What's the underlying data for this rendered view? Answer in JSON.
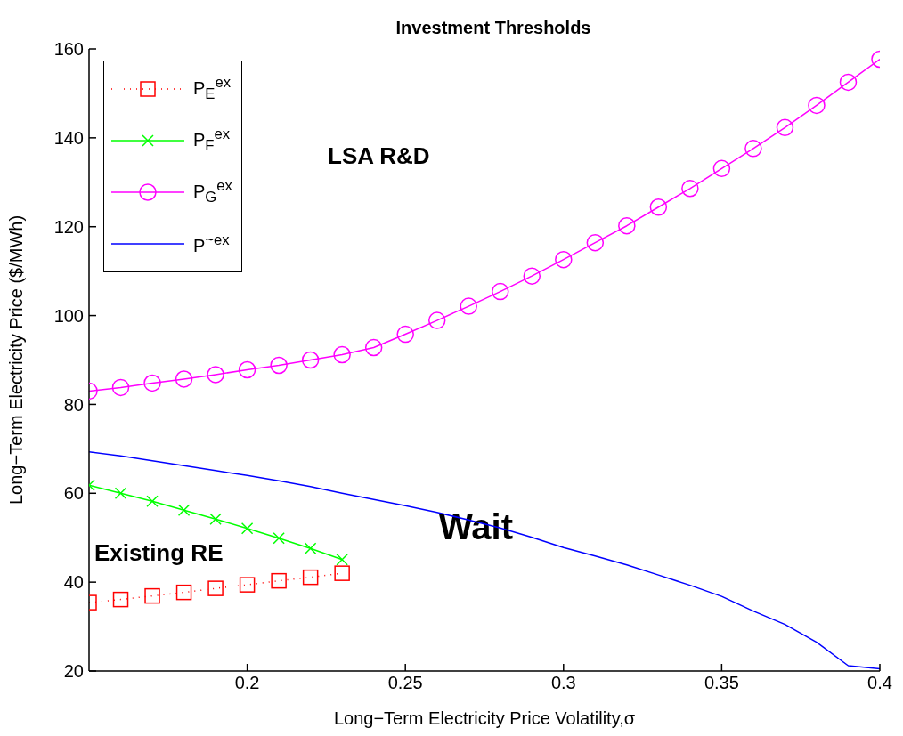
{
  "chart_data": {
    "type": "line",
    "title": "Investment Thresholds",
    "xlabel": "Long−Term Electricity Price Volatility,σ",
    "ylabel": "Long−Term Electricity Price ($/MWh)",
    "xlim": [
      0.15,
      0.4
    ],
    "xticks": [
      0.2,
      0.25,
      0.3,
      0.35,
      0.4
    ],
    "ylim": [
      20,
      160
    ],
    "yticks": [
      20,
      40,
      60,
      80,
      100,
      120,
      140,
      160
    ],
    "grid": false,
    "legend": "top left",
    "annotations": [
      "LSA R&D",
      "Wait",
      "Existing RE"
    ],
    "series": [
      {
        "name": "P$_{E}$$^{ex}$",
        "color": "#ff0000",
        "marker": "square",
        "line_style": "dotted",
        "x": [
          0.15,
          0.16,
          0.17,
          0.18,
          0.19,
          0.2,
          0.21,
          0.22,
          0.23
        ],
        "values": [
          35.4,
          36.1,
          36.9,
          37.7,
          38.6,
          39.4,
          40.3,
          41.1,
          42.0
        ]
      },
      {
        "name": "P$_{F}$$^{ex}$",
        "color": "#00ff00",
        "marker": "cross",
        "line_style": "solid",
        "x": [
          0.15,
          0.16,
          0.17,
          0.18,
          0.19,
          0.2,
          0.21,
          0.22,
          0.23
        ],
        "values": [
          61.8,
          60.0,
          58.2,
          56.2,
          54.2,
          52.1,
          49.9,
          47.6,
          45.1
        ]
      },
      {
        "name": "P$_{G}$$^{ex}$",
        "color": "#ff00ff",
        "marker": "circle",
        "line_style": "solid",
        "x": [
          0.15,
          0.16,
          0.17,
          0.18,
          0.19,
          0.2,
          0.21,
          0.22,
          0.23,
          0.24,
          0.25,
          0.26,
          0.27,
          0.28,
          0.29,
          0.3,
          0.31,
          0.32,
          0.33,
          0.34,
          0.35,
          0.36,
          0.37,
          0.38,
          0.39,
          0.4
        ],
        "values": [
          83.0,
          83.8,
          84.8,
          85.7,
          86.7,
          87.8,
          88.8,
          90.0,
          91.2,
          92.8,
          95.8,
          98.9,
          102.1,
          105.4,
          108.9,
          112.6,
          116.4,
          120.2,
          124.4,
          128.6,
          133.1,
          137.6,
          142.3,
          147.3,
          152.5,
          157.7
        ]
      },
      {
        "name": "P$^{~ex}$",
        "color": "#0000ff",
        "marker": "none",
        "line_style": "solid",
        "x": [
          0.15,
          0.16,
          0.17,
          0.18,
          0.19,
          0.2,
          0.21,
          0.22,
          0.23,
          0.24,
          0.25,
          0.26,
          0.27,
          0.28,
          0.29,
          0.3,
          0.31,
          0.32,
          0.33,
          0.34,
          0.35,
          0.36,
          0.37,
          0.38,
          0.39,
          0.4
        ],
        "values": [
          69.3,
          68.4,
          67.3,
          66.2,
          65.1,
          64.0,
          62.8,
          61.5,
          60.0,
          58.6,
          57.2,
          55.7,
          54.0,
          52.2,
          50.1,
          47.8,
          45.9,
          43.9,
          41.6,
          39.3,
          36.8,
          33.5,
          30.5,
          26.5,
          21.2,
          20.5
        ]
      }
    ]
  }
}
